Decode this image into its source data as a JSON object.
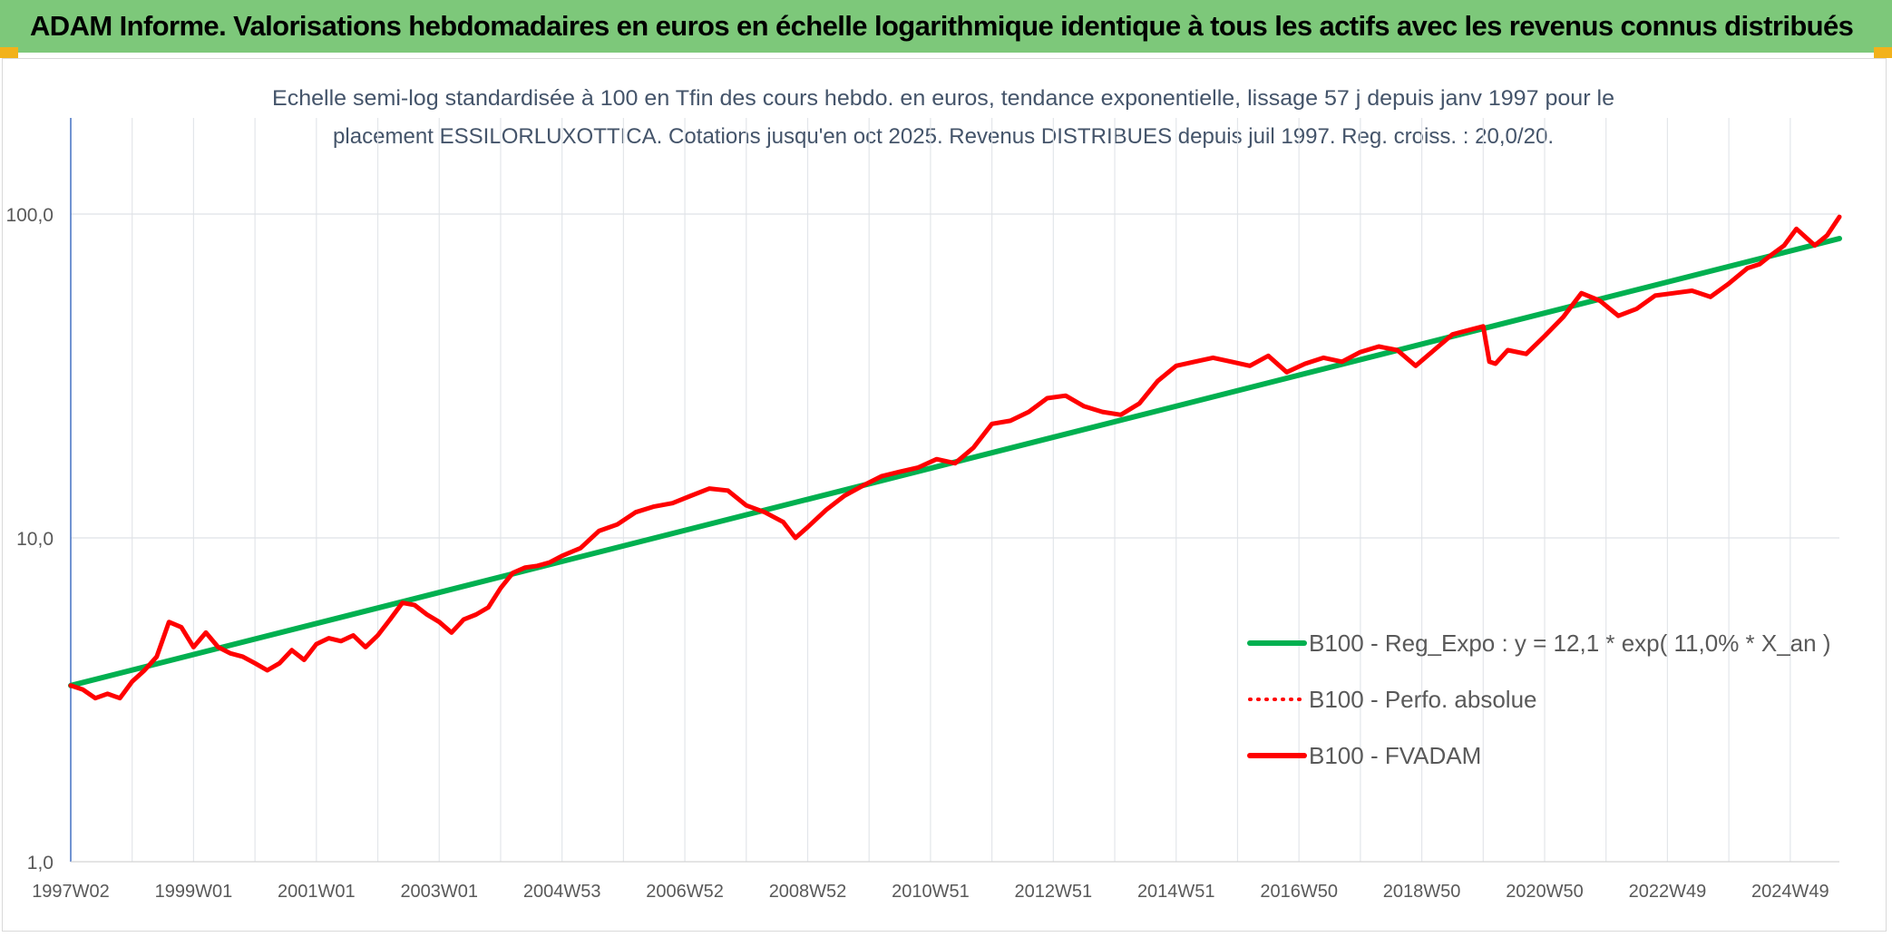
{
  "banner": {
    "title": "ADAM Informe. Valorisations hebdomadaires en euros en échelle logarithmique identique à tous les actifs avec les revenus connus distribués",
    "background": "#7dc87a",
    "corner_color": "#f2b21b"
  },
  "chart_data": {
    "type": "line",
    "title_line1": "Echelle semi-log standardisée à 100 en Tfin des cours hebdo. en euros, tendance exponentielle, lissage 57 j depuis janv 1997 pour le",
    "title_line2": "placement ESSILORLUXOTTICA. Cotations jusqu'en oct 2025. Revenus DISTRIBUES depuis juil 1997. Reg. croiss. : 20,0/20.",
    "y_scale": "log",
    "ylim": [
      1,
      100
    ],
    "y_ticks": [
      1,
      10,
      100
    ],
    "y_tick_labels": [
      "1,0",
      "10,0",
      "100,0"
    ],
    "x_tick_labels": [
      "1997W02",
      "1999W01",
      "2001W01",
      "2003W01",
      "2004W53",
      "2006W52",
      "2008W52",
      "2010W51",
      "2012W51",
      "2014W51",
      "2016W50",
      "2018W50",
      "2020W50",
      "2022W49",
      "2024W49"
    ],
    "x_tick_years": [
      1997.0,
      1999.0,
      2001.0,
      2003.0,
      2005.0,
      2007.0,
      2009.0,
      2011.0,
      2013.0,
      2015.0,
      2017.0,
      2019.0,
      2021.0,
      2023.0,
      2025.0
    ],
    "xlim": [
      1997.0,
      2025.8
    ],
    "grid": true,
    "legend_position": "right",
    "series": [
      {
        "name": "B100 - Reg_Expo : y = 12,1 * exp( 11,0% *  X_an )",
        "color": "#00b050",
        "style": "solid",
        "x": [
          1997.0,
          2025.8
        ],
        "values": [
          3.5,
          84.0
        ]
      },
      {
        "name": "B100 - Perfo. absolue",
        "color": "#ff0000",
        "style": "dotted",
        "x": [],
        "values": []
      },
      {
        "name": "B100 - FVADAM",
        "color": "#ff0000",
        "style": "solid",
        "x": [
          1997.0,
          1997.2,
          1997.4,
          1997.6,
          1997.8,
          1998.0,
          1998.2,
          1998.4,
          1998.6,
          1998.8,
          1999.0,
          1999.2,
          1999.4,
          1999.6,
          1999.8,
          2000.0,
          2000.2,
          2000.4,
          2000.6,
          2000.8,
          2001.0,
          2001.2,
          2001.4,
          2001.6,
          2001.8,
          2002.0,
          2002.2,
          2002.4,
          2002.6,
          2002.8,
          2003.0,
          2003.2,
          2003.4,
          2003.6,
          2003.8,
          2004.0,
          2004.2,
          2004.4,
          2004.6,
          2004.8,
          2005.0,
          2005.3,
          2005.6,
          2005.9,
          2006.2,
          2006.5,
          2006.8,
          2007.1,
          2007.4,
          2007.7,
          2008.0,
          2008.3,
          2008.6,
          2008.8,
          2009.0,
          2009.3,
          2009.6,
          2009.9,
          2010.2,
          2010.5,
          2010.8,
          2011.1,
          2011.4,
          2011.7,
          2012.0,
          2012.3,
          2012.6,
          2012.9,
          2013.2,
          2013.5,
          2013.8,
          2014.1,
          2014.4,
          2014.7,
          2015.0,
          2015.3,
          2015.6,
          2015.9,
          2016.2,
          2016.5,
          2016.8,
          2017.1,
          2017.4,
          2017.7,
          2018.0,
          2018.3,
          2018.6,
          2018.9,
          2019.2,
          2019.5,
          2019.8,
          2020.0,
          2020.1,
          2020.2,
          2020.4,
          2020.7,
          2021.0,
          2021.3,
          2021.6,
          2021.9,
          2022.2,
          2022.5,
          2022.8,
          2023.1,
          2023.4,
          2023.7,
          2024.0,
          2024.3,
          2024.5,
          2024.7,
          2024.9,
          2025.1,
          2025.4,
          2025.6,
          2025.8
        ],
        "values": [
          3.5,
          3.4,
          3.2,
          3.3,
          3.2,
          3.6,
          3.9,
          4.3,
          5.5,
          5.3,
          4.6,
          5.1,
          4.6,
          4.4,
          4.3,
          4.1,
          3.9,
          4.1,
          4.5,
          4.2,
          4.7,
          4.9,
          4.8,
          5.0,
          4.6,
          5.0,
          5.6,
          6.3,
          6.2,
          5.8,
          5.5,
          5.1,
          5.6,
          5.8,
          6.1,
          7.0,
          7.8,
          8.1,
          8.2,
          8.4,
          8.8,
          9.3,
          10.5,
          11.0,
          12.0,
          12.5,
          12.8,
          13.5,
          14.2,
          14.0,
          12.6,
          12.0,
          11.2,
          10.0,
          10.8,
          12.2,
          13.5,
          14.5,
          15.5,
          16.0,
          16.5,
          17.5,
          17.0,
          19.0,
          22.5,
          23.0,
          24.5,
          27.0,
          27.5,
          25.5,
          24.5,
          24.0,
          26.0,
          30.5,
          34.0,
          35.0,
          36.0,
          35.0,
          34.0,
          36.5,
          32.5,
          34.5,
          36.0,
          35.0,
          37.5,
          39.0,
          38.0,
          34.0,
          38.0,
          42.5,
          44.0,
          45.0,
          35.0,
          34.5,
          38.0,
          37.0,
          42.0,
          48.0,
          57.0,
          54.0,
          48.5,
          51.0,
          56.0,
          57.0,
          58.0,
          55.5,
          61.0,
          68.0,
          70.0,
          75.0,
          80.0,
          90.0,
          80.0,
          86.0,
          98.0
        ]
      }
    ]
  }
}
